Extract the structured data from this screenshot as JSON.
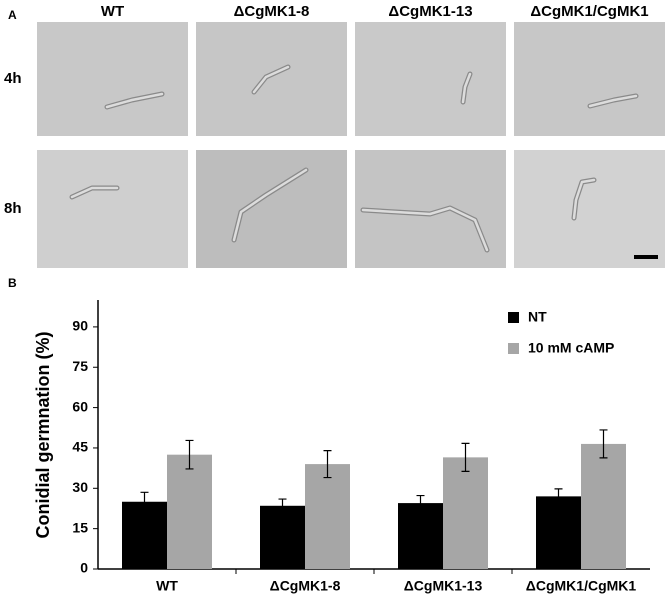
{
  "panel_a": {
    "label": "A",
    "columns": [
      "WT",
      "ΔCgMK1-8",
      "ΔCgMK1-13",
      "ΔCgMK1/CgMK1"
    ],
    "rows": [
      "4h",
      "8h"
    ]
  },
  "panel_b": {
    "label": "B"
  },
  "chart_data": {
    "type": "bar",
    "ylabel": "Conidial germnation (%)",
    "categories": [
      "WT",
      "ΔCgMK1-8",
      "ΔCgMK1-13",
      "ΔCgMK1/CgMK1"
    ],
    "series": [
      {
        "name": "NT",
        "color": "#000000",
        "values": [
          25,
          23.5,
          24.5,
          27
        ],
        "errors": [
          3.5,
          2.5,
          2.8,
          2.8
        ]
      },
      {
        "name": "10 mM cAMP",
        "color": "#a6a6a6",
        "values": [
          42.5,
          39,
          41.5,
          46.5
        ],
        "errors": [
          5.3,
          5,
          5.2,
          5.2
        ]
      }
    ],
    "ylim": [
      0,
      100
    ],
    "yticks": [
      0,
      15,
      30,
      45,
      60,
      75,
      90
    ],
    "grid": false,
    "legend": "upper right"
  }
}
